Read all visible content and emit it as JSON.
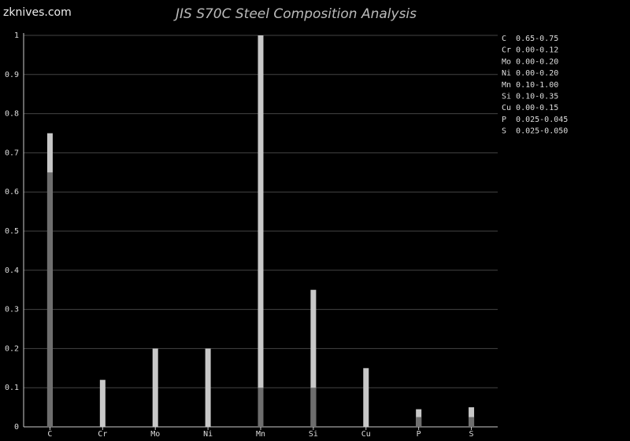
{
  "watermark": "zknives.com",
  "chart_data": {
    "type": "range_bar",
    "title": "JIS S70C Steel Composition Analysis",
    "categories": [
      "C",
      "Cr",
      "Mo",
      "Ni",
      "Mn",
      "Si",
      "Cu",
      "P",
      "S"
    ],
    "series": [
      {
        "color": "#c8c8c8",
        "values": [
          0.75,
          0.12,
          0.2,
          0.2,
          1.0,
          0.35,
          0.15,
          0.045,
          0.05
        ]
      },
      {
        "color": "#6e6e6e",
        "values": [
          0.65,
          0,
          0,
          0,
          0.1,
          0.1,
          0,
          0.025,
          0.025
        ]
      }
    ],
    "range_labels": [
      "C  0.65-0.75",
      "Cr 0.00-0.12",
      "Mo 0.00-0.20",
      "Ni 0.00-0.20",
      "Mn 0.10-1.00",
      "Si 0.10-0.35",
      "Cu 0.00-0.15",
      "P  0.025-0.045",
      "S  0.025-0.050"
    ],
    "ylim": [
      0,
      1
    ],
    "yticks": [
      0,
      0.1,
      0.2,
      0.3,
      0.4,
      0.5,
      0.6,
      0.7,
      0.8,
      0.9,
      1
    ],
    "grid": true
  }
}
